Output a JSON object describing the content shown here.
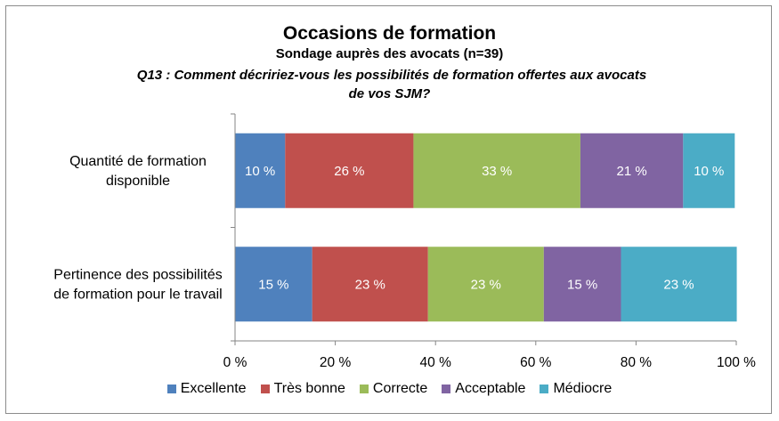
{
  "chart_data": {
    "type": "bar",
    "orientation": "horizontal",
    "stacked": true,
    "title": "Occasions de formation",
    "subtitle": "Sondage auprès des avocats (n=39)",
    "question_line1": "Q13 : Comment décririez-vous les possibilités de formation offertes aux avocats",
    "question_line2": "de vos SJM?",
    "categories": [
      [
        "Quantité de formation",
        "disponible"
      ],
      [
        "Pertinence des possibilités",
        "de formation pour le travail"
      ]
    ],
    "series": [
      {
        "name": "Excellente",
        "color": "#4F81BD",
        "values": [
          10,
          15.4
        ],
        "labels": [
          "10 %",
          "15 %"
        ]
      },
      {
        "name": "Très bonne",
        "color": "#C0504D",
        "values": [
          25.6,
          23.1
        ],
        "labels": [
          "26 %",
          "23 %"
        ]
      },
      {
        "name": "Correcte",
        "color": "#9BBB59",
        "values": [
          33.3,
          23.1
        ],
        "labels": [
          "33 %",
          "23 %"
        ]
      },
      {
        "name": "Acceptable",
        "color": "#8064A2",
        "values": [
          20.5,
          15.4
        ],
        "labels": [
          "21 %",
          "15 %"
        ]
      },
      {
        "name": "Médiocre",
        "color": "#4BACC6",
        "values": [
          10.3,
          23.1
        ],
        "labels": [
          "10 %",
          "23 %"
        ]
      }
    ],
    "xlim": [
      0,
      100
    ],
    "x_ticks": [
      0,
      20,
      40,
      60,
      80,
      100
    ],
    "x_tick_labels": [
      "0 %",
      "20 %",
      "40 %",
      "60 %",
      "80 %",
      "100 %"
    ],
    "grid": false,
    "legend_position": "bottom"
  }
}
